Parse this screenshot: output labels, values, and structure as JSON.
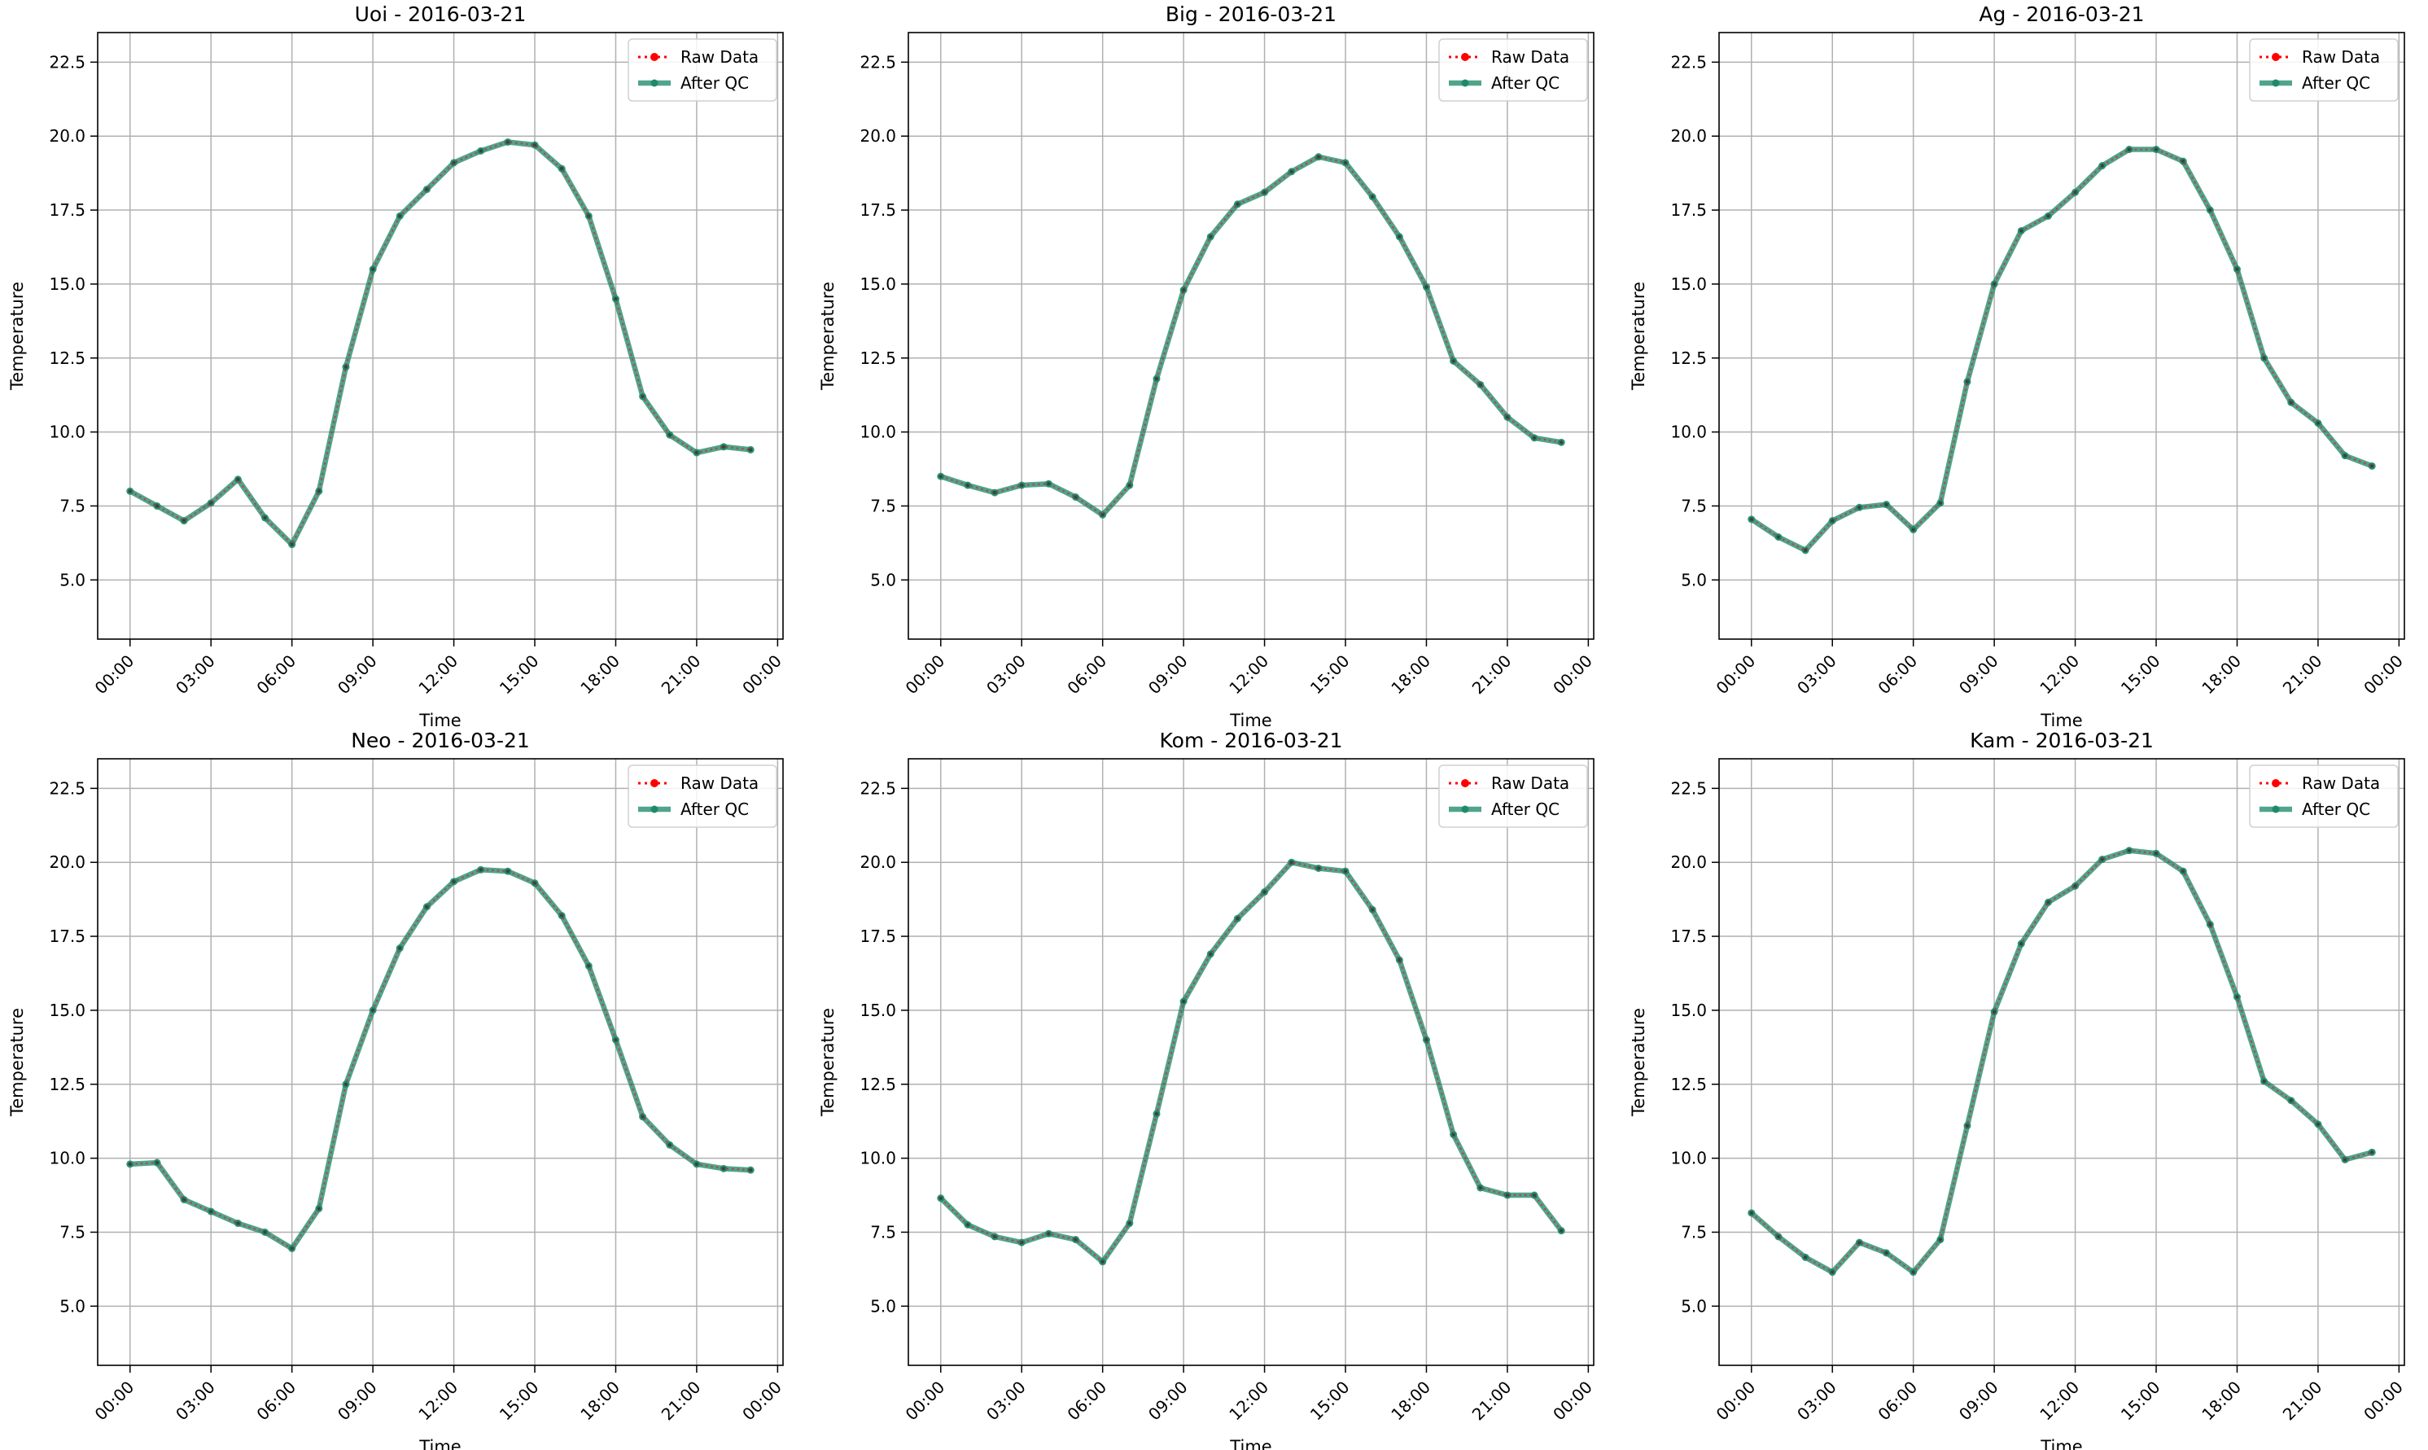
{
  "colors": {
    "raw": "#ff0000",
    "qc": "#1f8a6b",
    "grid": "#b0b0b0",
    "axis": "#000000",
    "background": "#ffffff"
  },
  "chart_data": [
    {
      "type": "line",
      "title": "Uoi - 2016-03-21",
      "xlabel": "Time",
      "ylabel": "Temperature",
      "xlim_hours": [
        -1.2,
        24.2
      ],
      "ylim": [
        3.0,
        23.5
      ],
      "x_ticks": [
        "00:00",
        "03:00",
        "06:00",
        "09:00",
        "12:00",
        "15:00",
        "18:00",
        "21:00",
        "00:00"
      ],
      "y_ticks": [
        "5.0",
        "7.5",
        "10.0",
        "12.5",
        "15.0",
        "17.5",
        "20.0",
        "22.5"
      ],
      "grid": true,
      "legend": "top-right",
      "x": [
        "00:00",
        "01:00",
        "02:00",
        "03:00",
        "04:00",
        "05:00",
        "06:00",
        "07:00",
        "08:00",
        "09:00",
        "10:00",
        "11:00",
        "12:00",
        "13:00",
        "14:00",
        "15:00",
        "16:00",
        "17:00",
        "18:00",
        "19:00",
        "20:00",
        "21:00",
        "22:00",
        "23:00"
      ],
      "series": [
        {
          "name": "Raw Data",
          "style": "dotted-red",
          "values": [
            8.0,
            7.5,
            7.0,
            7.6,
            8.4,
            7.1,
            6.2,
            8.0,
            12.2,
            15.5,
            17.3,
            18.2,
            19.1,
            19.5,
            19.8,
            19.7,
            18.9,
            17.3,
            14.5,
            11.2,
            9.9,
            9.3,
            9.5,
            9.4
          ]
        },
        {
          "name": "After QC",
          "style": "solid-green",
          "values": [
            8.0,
            7.5,
            7.0,
            7.6,
            8.4,
            7.1,
            6.2,
            8.0,
            12.2,
            15.5,
            17.3,
            18.2,
            19.1,
            19.5,
            19.8,
            19.7,
            18.9,
            17.3,
            14.5,
            11.2,
            9.9,
            9.3,
            9.5,
            9.4
          ]
        }
      ]
    },
    {
      "type": "line",
      "title": "Big - 2016-03-21",
      "xlabel": "Time",
      "ylabel": "Temperature",
      "xlim_hours": [
        -1.2,
        24.2
      ],
      "ylim": [
        3.0,
        23.5
      ],
      "x_ticks": [
        "00:00",
        "03:00",
        "06:00",
        "09:00",
        "12:00",
        "15:00",
        "18:00",
        "21:00",
        "00:00"
      ],
      "y_ticks": [
        "5.0",
        "7.5",
        "10.0",
        "12.5",
        "15.0",
        "17.5",
        "20.0",
        "22.5"
      ],
      "grid": true,
      "legend": "top-right",
      "x": [
        "00:00",
        "01:00",
        "02:00",
        "03:00",
        "04:00",
        "05:00",
        "06:00",
        "07:00",
        "08:00",
        "09:00",
        "10:00",
        "11:00",
        "12:00",
        "13:00",
        "14:00",
        "15:00",
        "16:00",
        "17:00",
        "18:00",
        "19:00",
        "20:00",
        "21:00",
        "22:00",
        "23:00"
      ],
      "series": [
        {
          "name": "Raw Data",
          "style": "dotted-red",
          "values": [
            8.5,
            8.2,
            7.95,
            8.2,
            8.25,
            7.8,
            7.2,
            8.2,
            11.8,
            14.8,
            16.6,
            17.7,
            18.1,
            18.8,
            19.3,
            19.1,
            17.95,
            16.6,
            14.9,
            12.4,
            11.6,
            10.5,
            9.8,
            9.65
          ]
        },
        {
          "name": "After QC",
          "style": "solid-green",
          "values": [
            8.5,
            8.2,
            7.95,
            8.2,
            8.25,
            7.8,
            7.2,
            8.2,
            11.8,
            14.8,
            16.6,
            17.7,
            18.1,
            18.8,
            19.3,
            19.1,
            17.95,
            16.6,
            14.9,
            12.4,
            11.6,
            10.5,
            9.8,
            9.65
          ]
        }
      ]
    },
    {
      "type": "line",
      "title": "Ag - 2016-03-21",
      "xlabel": "Time",
      "ylabel": "Temperature",
      "xlim_hours": [
        -1.2,
        24.2
      ],
      "ylim": [
        3.0,
        23.5
      ],
      "x_ticks": [
        "00:00",
        "03:00",
        "06:00",
        "09:00",
        "12:00",
        "15:00",
        "18:00",
        "21:00",
        "00:00"
      ],
      "y_ticks": [
        "5.0",
        "7.5",
        "10.0",
        "12.5",
        "15.0",
        "17.5",
        "20.0",
        "22.5"
      ],
      "grid": true,
      "legend": "top-right",
      "x": [
        "00:00",
        "01:00",
        "02:00",
        "03:00",
        "04:00",
        "05:00",
        "06:00",
        "07:00",
        "08:00",
        "09:00",
        "10:00",
        "11:00",
        "12:00",
        "13:00",
        "14:00",
        "15:00",
        "16:00",
        "17:00",
        "18:00",
        "19:00",
        "20:00",
        "21:00",
        "22:00",
        "23:00"
      ],
      "series": [
        {
          "name": "Raw Data",
          "style": "dotted-red",
          "values": [
            7.05,
            6.45,
            6.0,
            7.0,
            7.45,
            7.55,
            6.7,
            7.6,
            11.7,
            15.0,
            16.8,
            17.3,
            18.1,
            19.0,
            19.55,
            19.55,
            19.15,
            17.5,
            15.5,
            12.5,
            11.0,
            10.3,
            9.2,
            8.85
          ]
        },
        {
          "name": "After QC",
          "style": "solid-green",
          "values": [
            7.05,
            6.45,
            6.0,
            7.0,
            7.45,
            7.55,
            6.7,
            7.6,
            11.7,
            15.0,
            16.8,
            17.3,
            18.1,
            19.0,
            19.55,
            19.55,
            19.15,
            17.5,
            15.5,
            12.5,
            11.0,
            10.3,
            9.2,
            8.85
          ]
        }
      ]
    },
    {
      "type": "line",
      "title": "Neo - 2016-03-21",
      "xlabel": "Time",
      "ylabel": "Temperature",
      "xlim_hours": [
        -1.2,
        24.2
      ],
      "ylim": [
        3.0,
        23.5
      ],
      "x_ticks": [
        "00:00",
        "03:00",
        "06:00",
        "09:00",
        "12:00",
        "15:00",
        "18:00",
        "21:00",
        "00:00"
      ],
      "y_ticks": [
        "5.0",
        "7.5",
        "10.0",
        "12.5",
        "15.0",
        "17.5",
        "20.0",
        "22.5"
      ],
      "grid": true,
      "legend": "top-right",
      "x": [
        "00:00",
        "01:00",
        "02:00",
        "03:00",
        "04:00",
        "05:00",
        "06:00",
        "07:00",
        "08:00",
        "09:00",
        "10:00",
        "11:00",
        "12:00",
        "13:00",
        "14:00",
        "15:00",
        "16:00",
        "17:00",
        "18:00",
        "19:00",
        "20:00",
        "21:00",
        "22:00",
        "23:00"
      ],
      "series": [
        {
          "name": "Raw Data",
          "style": "dotted-red",
          "values": [
            9.8,
            9.85,
            8.6,
            8.2,
            7.8,
            7.5,
            6.95,
            8.3,
            12.5,
            15.0,
            17.1,
            18.5,
            19.35,
            19.75,
            19.7,
            19.3,
            18.2,
            16.5,
            14.0,
            11.4,
            10.45,
            9.8,
            9.65,
            9.6
          ]
        },
        {
          "name": "After QC",
          "style": "solid-green",
          "values": [
            9.8,
            9.85,
            8.6,
            8.2,
            7.8,
            7.5,
            6.95,
            8.3,
            12.5,
            15.0,
            17.1,
            18.5,
            19.35,
            19.75,
            19.7,
            19.3,
            18.2,
            16.5,
            14.0,
            11.4,
            10.45,
            9.8,
            9.65,
            9.6
          ]
        }
      ]
    },
    {
      "type": "line",
      "title": "Kom - 2016-03-21",
      "xlabel": "Time",
      "ylabel": "Temperature",
      "xlim_hours": [
        -1.2,
        24.2
      ],
      "ylim": [
        3.0,
        23.5
      ],
      "x_ticks": [
        "00:00",
        "03:00",
        "06:00",
        "09:00",
        "12:00",
        "15:00",
        "18:00",
        "21:00",
        "00:00"
      ],
      "y_ticks": [
        "5.0",
        "7.5",
        "10.0",
        "12.5",
        "15.0",
        "17.5",
        "20.0",
        "22.5"
      ],
      "grid": true,
      "legend": "top-right",
      "x": [
        "00:00",
        "01:00",
        "02:00",
        "03:00",
        "04:00",
        "05:00",
        "06:00",
        "07:00",
        "08:00",
        "09:00",
        "10:00",
        "11:00",
        "12:00",
        "13:00",
        "14:00",
        "15:00",
        "16:00",
        "17:00",
        "18:00",
        "19:00",
        "20:00",
        "21:00",
        "22:00",
        "23:00"
      ],
      "series": [
        {
          "name": "Raw Data",
          "style": "dotted-red",
          "values": [
            8.65,
            7.75,
            7.35,
            7.15,
            7.45,
            7.25,
            6.5,
            7.8,
            11.5,
            15.3,
            16.9,
            18.1,
            19.0,
            20.0,
            19.8,
            19.7,
            18.4,
            16.7,
            14.0,
            10.8,
            9.0,
            8.75,
            8.75,
            7.55
          ]
        },
        {
          "name": "After QC",
          "style": "solid-green",
          "values": [
            8.65,
            7.75,
            7.35,
            7.15,
            7.45,
            7.25,
            6.5,
            7.8,
            11.5,
            15.3,
            16.9,
            18.1,
            19.0,
            20.0,
            19.8,
            19.7,
            18.4,
            16.7,
            14.0,
            10.8,
            9.0,
            8.75,
            8.75,
            7.55
          ]
        }
      ]
    },
    {
      "type": "line",
      "title": "Kam - 2016-03-21",
      "xlabel": "Time",
      "ylabel": "Temperature",
      "xlim_hours": [
        -1.2,
        24.2
      ],
      "ylim": [
        3.0,
        23.5
      ],
      "x_ticks": [
        "00:00",
        "03:00",
        "06:00",
        "09:00",
        "12:00",
        "15:00",
        "18:00",
        "21:00",
        "00:00"
      ],
      "y_ticks": [
        "5.0",
        "7.5",
        "10.0",
        "12.5",
        "15.0",
        "17.5",
        "20.0",
        "22.5"
      ],
      "grid": true,
      "legend": "top-right",
      "x": [
        "00:00",
        "01:00",
        "02:00",
        "03:00",
        "04:00",
        "05:00",
        "06:00",
        "07:00",
        "08:00",
        "09:00",
        "10:00",
        "11:00",
        "12:00",
        "13:00",
        "14:00",
        "15:00",
        "16:00",
        "17:00",
        "18:00",
        "19:00",
        "20:00",
        "21:00",
        "22:00",
        "23:00"
      ],
      "series": [
        {
          "name": "Raw Data",
          "style": "dotted-red",
          "values": [
            8.15,
            7.35,
            6.65,
            6.15,
            7.15,
            6.8,
            6.15,
            7.25,
            11.1,
            14.95,
            17.25,
            18.65,
            19.2,
            20.1,
            20.4,
            20.3,
            19.7,
            17.9,
            15.45,
            12.6,
            11.95,
            11.15,
            9.95,
            10.2
          ]
        },
        {
          "name": "After QC",
          "style": "solid-green",
          "values": [
            8.15,
            7.35,
            6.65,
            6.15,
            7.15,
            6.8,
            6.15,
            7.25,
            11.1,
            14.95,
            17.25,
            18.65,
            19.2,
            20.1,
            20.4,
            20.3,
            19.7,
            17.9,
            15.45,
            12.6,
            11.95,
            11.15,
            9.95,
            10.2
          ]
        }
      ]
    }
  ]
}
